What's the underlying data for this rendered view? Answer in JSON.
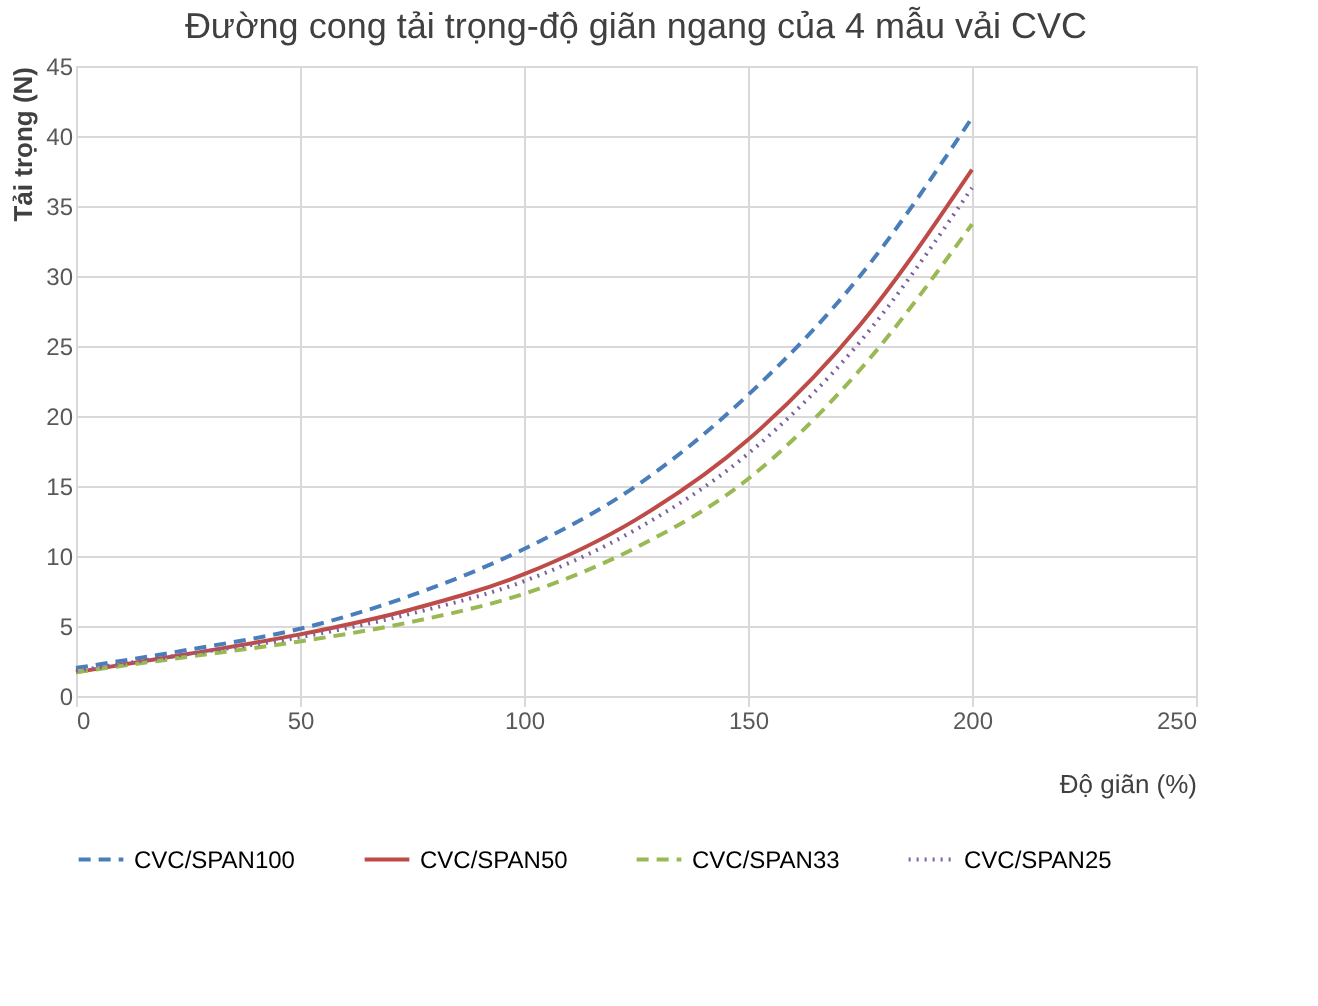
{
  "chart_data": {
    "type": "line",
    "title": "Đường cong tải trọng-độ giãn ngang của 4 mẫu vải CVC",
    "xlabel": "Độ giãn (%)",
    "ylabel": "Tải trọng (N)",
    "x": [
      0,
      25,
      50,
      75,
      100,
      125,
      150,
      175,
      200
    ],
    "xlim": [
      0,
      250
    ],
    "xticks": [
      0,
      50,
      100,
      150,
      200,
      250
    ],
    "ylim": [
      0,
      45
    ],
    "yticks": [
      0,
      5,
      10,
      15,
      20,
      25,
      30,
      35,
      40,
      45
    ],
    "grid": true,
    "legend": "bottom",
    "marker": "none",
    "series": [
      {
        "name": "CVC/SPAN100",
        "color": "#4a7ebb",
        "line_style": "dashed",
        "values": [
          2.0,
          3.3,
          4.8,
          7.2,
          10.5,
          15.0,
          21.5,
          30.0,
          41.3
        ]
      },
      {
        "name": "CVC/SPAN50",
        "color": "#be4b48",
        "line_style": "solid",
        "values": [
          1.7,
          3.0,
          4.4,
          6.2,
          8.7,
          12.6,
          18.3,
          26.5,
          37.6
        ]
      },
      {
        "name": "CVC/SPAN33",
        "color": "#98b954",
        "line_style": "dashed",
        "values": [
          1.7,
          2.8,
          3.9,
          5.3,
          7.3,
          10.6,
          15.5,
          23.3,
          33.7
        ]
      },
      {
        "name": "CVC/SPAN25",
        "color": "#7d60a0",
        "line_style": "dotted",
        "values": [
          1.8,
          3.0,
          4.2,
          5.9,
          8.2,
          11.9,
          17.3,
          25.3,
          36.3
        ]
      }
    ]
  }
}
